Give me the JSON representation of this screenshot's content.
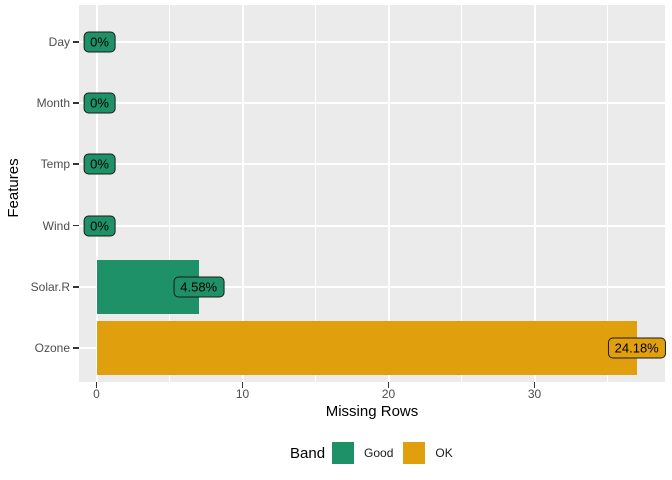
{
  "chart_data": {
    "type": "bar",
    "orientation": "horizontal",
    "title": "",
    "xlabel": "Missing Rows",
    "ylabel": "Features",
    "categories": [
      "Day",
      "Month",
      "Temp",
      "Wind",
      "Solar.R",
      "Ozone"
    ],
    "series": [
      {
        "name": "Missing Rows",
        "values": [
          0,
          0,
          0,
          0,
          7,
          37
        ]
      }
    ],
    "bar_labels": [
      "0%",
      "0%",
      "0%",
      "0%",
      "4.58%",
      "24.18%"
    ],
    "bands": [
      "Good",
      "Good",
      "Good",
      "Good",
      "Good",
      "OK"
    ],
    "x_ticks": [
      0,
      10,
      20,
      30
    ],
    "x_minor_ticks": [
      5,
      15,
      25,
      35
    ],
    "xlim": [
      -1.2,
      39
    ],
    "grid": "major_and_minor",
    "legend_position": "bottom",
    "colors": {
      "band_good": "#1E9169",
      "band_ok": "#E0A00D",
      "panel_bg": "#EBEBEB",
      "gridline": "#FFFFFF",
      "axis_text": "#4D4D4D",
      "axis_title": "#000000",
      "tick_mark": "#333333",
      "label_border": "#1A1A1A",
      "label_text": "#000000"
    },
    "legend": {
      "title": "Band",
      "items": [
        {
          "label": "Good",
          "band": "Good",
          "color": "#1E9169"
        },
        {
          "label": "OK",
          "band": "OK",
          "color": "#E0A00D"
        }
      ]
    }
  }
}
